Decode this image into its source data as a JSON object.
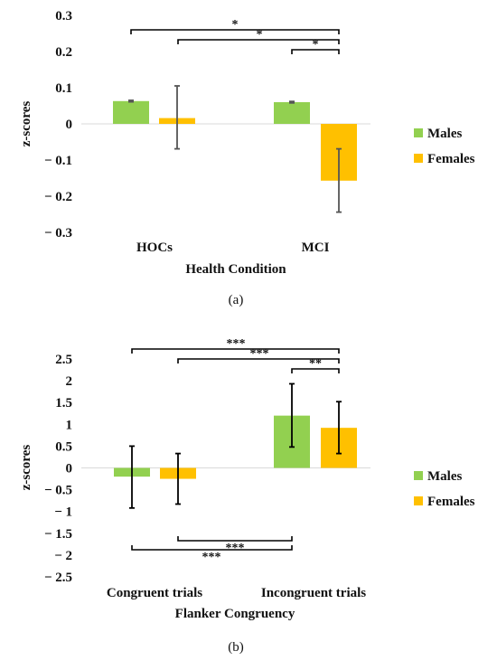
{
  "colors": {
    "males": "#92d050",
    "females": "#ffc000",
    "error_bar": "#555555",
    "bracket": "#000000"
  },
  "chart_data": [
    {
      "type": "bar",
      "panel_label": "(a)",
      "categories": [
        "HOCs",
        "MCI"
      ],
      "series": [
        {
          "name": "Males",
          "values": [
            0.063,
            0.06
          ],
          "error_low": [
            0.061,
            0.058
          ],
          "error_high": [
            0.065,
            0.062
          ]
        },
        {
          "name": "Females",
          "values": [
            0.016,
            -0.157
          ],
          "error_low": [
            -0.069,
            -0.244
          ],
          "error_high": [
            0.105,
            -0.069
          ]
        }
      ],
      "xlabel": "Health Condition",
      "ylabel": "z-scores",
      "ylim": [
        -0.3,
        0.3
      ],
      "yticks": [
        "0.3",
        "0.2",
        "0.1",
        "0",
        "− 0.1",
        "− 0.2",
        "− 0.3"
      ],
      "legend_placement": "right",
      "significance": [
        {
          "from": "HOCs Males",
          "to": "MCI Females",
          "label": "*",
          "side": "top"
        },
        {
          "from": "HOCs Females",
          "to": "MCI Females",
          "label": "*",
          "side": "top"
        },
        {
          "from": "MCI Males",
          "to": "MCI Females",
          "label": "*",
          "side": "top"
        }
      ]
    },
    {
      "type": "bar",
      "panel_label": "(b)",
      "categories": [
        "Congruent trials",
        "Incongruent trials"
      ],
      "series": [
        {
          "name": "Males",
          "values": [
            -0.2,
            1.2
          ],
          "error_low": [
            -0.92,
            0.48
          ],
          "error_high": [
            0.5,
            1.93
          ]
        },
        {
          "name": "Females",
          "values": [
            -0.25,
            0.92
          ],
          "error_low": [
            -0.83,
            0.33
          ],
          "error_high": [
            0.33,
            1.52
          ]
        }
      ],
      "xlabel": "Flanker Congruency",
      "ylabel": "z-scores",
      "ylim": [
        -2.5,
        2.5
      ],
      "yticks": [
        "2.5",
        "2",
        "1.5",
        "1",
        "0.5",
        "0",
        "− 0.5",
        "− 1",
        "− 1.5",
        "− 2",
        "− 2.5"
      ],
      "legend_placement": "right",
      "significance": [
        {
          "from": "Congruent Males",
          "to": "Incongruent Females",
          "label": "***",
          "side": "top"
        },
        {
          "from": "Congruent Females",
          "to": "Incongruent Females",
          "label": "***",
          "side": "top"
        },
        {
          "from": "Incongruent Males",
          "to": "Incongruent Females",
          "label": "**",
          "side": "top"
        },
        {
          "from": "Congruent Females",
          "to": "Incongruent Males",
          "label": "***",
          "side": "bottom"
        },
        {
          "from": "Congruent Males",
          "to": "Incongruent Males",
          "label": "***",
          "side": "bottom"
        }
      ]
    }
  ]
}
